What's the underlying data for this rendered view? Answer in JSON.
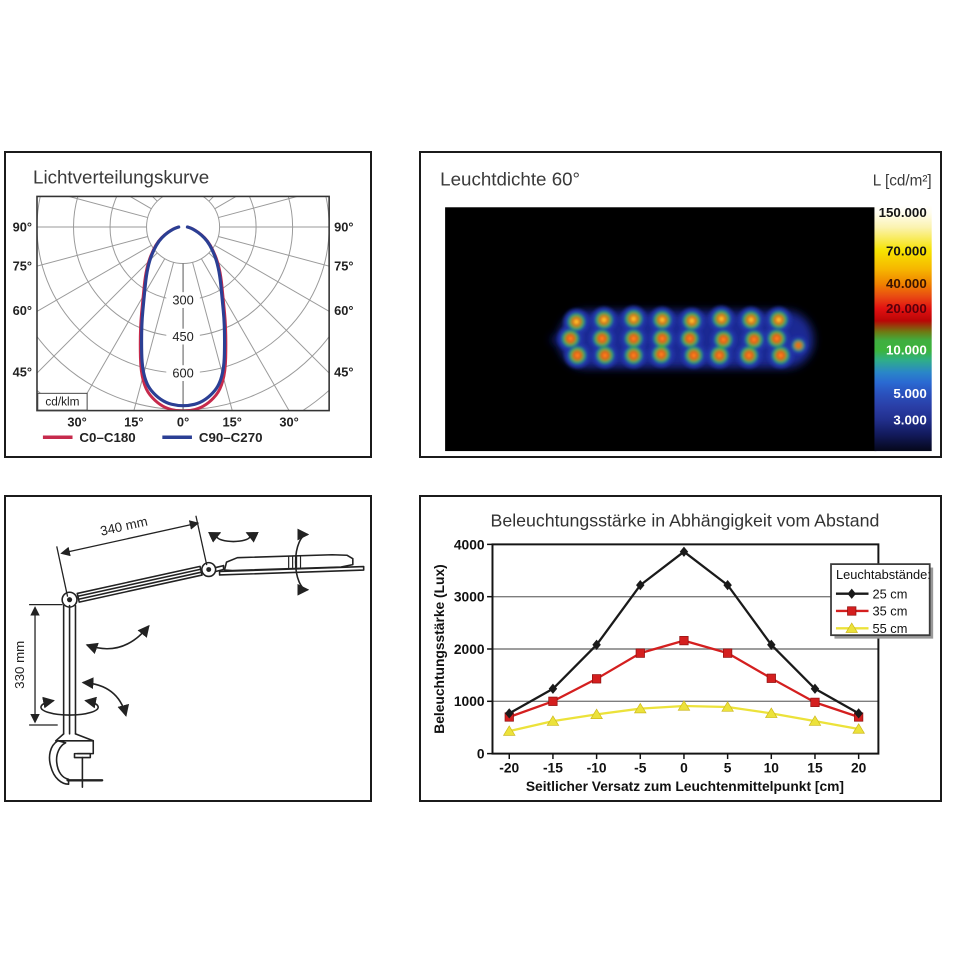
{
  "document": {
    "background": "#ffffff"
  },
  "panels": {
    "light_distribution": {
      "title": "Lichtverteilungskurve",
      "unit_box": "cd/klm",
      "side_angle_labels": [
        {
          "label": "90°",
          "deg": 90
        },
        {
          "label": "75°",
          "deg": 75
        },
        {
          "label": "60°",
          "deg": 60
        },
        {
          "label": "45°",
          "deg": 45
        }
      ],
      "bottom_angle_labels": [
        {
          "label": "30°",
          "deg": -30
        },
        {
          "label": "15°",
          "deg": -15
        },
        {
          "label": "0°",
          "deg": 0
        },
        {
          "label": "15°",
          "deg": 15
        },
        {
          "label": "30°",
          "deg": 30
        }
      ],
      "ring_labels": [
        {
          "label": "300",
          "value": 300
        },
        {
          "label": "450",
          "value": 450
        },
        {
          "label": "600",
          "value": 600
        }
      ],
      "legend": [
        {
          "label": "C0–C180",
          "color": "#c62a4c"
        },
        {
          "label": "C90–C270",
          "color": "#2b3f94"
        }
      ]
    },
    "luminance": {
      "title": "Leuchtdichte 60°",
      "unit_label": "L [cd/m²]"
    },
    "arm_drawing": {
      "arm_length_label": "340 mm",
      "post_height_label": "330 mm"
    },
    "illuminance": {
      "title": "Beleuchtungsstärke in Abhängigkeit vom Abstand",
      "ylabel": "Beleuchtungsstärke (Lux)",
      "xlabel": "Seitlicher Versatz zum Leuchtenmittelpunkt [cm]",
      "legend_title": "Leuchtabstände:"
    }
  },
  "chart_data": [
    {
      "type": "line",
      "subtype": "polar-luminous-intensity",
      "title": "Lichtverteilungskurve",
      "radial_unit": "cd/klm",
      "ring_values": [
        150,
        300,
        450,
        600,
        750,
        900
      ],
      "angle_grid_deg": 15,
      "series": [
        {
          "name": "C0–C180",
          "color": "#c62a4c"
        },
        {
          "name": "C90–C270",
          "color": "#2b3f94"
        }
      ],
      "curve": {
        "symmetric": true,
        "angles_deg": [
          0,
          7.5,
          15,
          22.5,
          30,
          37.5,
          45,
          52.5,
          60,
          67.5,
          75,
          82.5,
          90
        ],
        "values_cd_klm": [
          740,
          722,
          648,
          450,
          318,
          248,
          195,
          150,
          115,
          80,
          50,
          32,
          18
        ]
      }
    },
    {
      "type": "heatmap",
      "subtype": "false-color-luminance",
      "title": "Leuchtdichte 60°",
      "unit": "L [cd/m²]",
      "scale": [
        {
          "label": "150.000",
          "value": 150000
        },
        {
          "label": "70.000",
          "value": 70000
        },
        {
          "label": "40.000",
          "value": 40000
        },
        {
          "label": "20.000",
          "value": 20000
        },
        {
          "label": "10.000",
          "value": 10000
        },
        {
          "label": "5.000",
          "value": 5000
        },
        {
          "label": "3.000",
          "value": 3000
        }
      ],
      "hotspots": [
        {
          "x": 133,
          "y": 116,
          "bright": true
        },
        {
          "x": 127,
          "y": 133
        },
        {
          "x": 134,
          "y": 150
        },
        {
          "x": 161,
          "y": 114,
          "bright": true
        },
        {
          "x": 159,
          "y": 133
        },
        {
          "x": 162,
          "y": 150
        },
        {
          "x": 191,
          "y": 113,
          "bright": true
        },
        {
          "x": 191,
          "y": 133
        },
        {
          "x": 191,
          "y": 150
        },
        {
          "x": 220,
          "y": 114,
          "bright": true
        },
        {
          "x": 220,
          "y": 133
        },
        {
          "x": 219,
          "y": 149
        },
        {
          "x": 250,
          "y": 115,
          "bright": true
        },
        {
          "x": 248,
          "y": 133
        },
        {
          "x": 252,
          "y": 150
        },
        {
          "x": 280,
          "y": 113,
          "bright": true
        },
        {
          "x": 282,
          "y": 134
        },
        {
          "x": 278,
          "y": 150
        },
        {
          "x": 310,
          "y": 114,
          "bright": true
        },
        {
          "x": 313,
          "y": 134
        },
        {
          "x": 308,
          "y": 150
        },
        {
          "x": 338,
          "y": 114,
          "bright": true
        },
        {
          "x": 336,
          "y": 133
        },
        {
          "x": 340,
          "y": 150
        },
        {
          "x": 358,
          "y": 140,
          "small": true
        }
      ]
    },
    {
      "type": "line",
      "title": "Beleuchtungsstärke in Abhängigkeit vom Abstand",
      "xlabel": "Seitlicher Versatz zum Leuchtenmittelpunkt [cm]",
      "ylabel": "Beleuchtungsstärke (Lux)",
      "x": [
        -20,
        -15,
        -10,
        -5,
        0,
        5,
        10,
        15,
        20
      ],
      "xticks": [
        "-20",
        "-15",
        "-10",
        "-5",
        "0",
        "5",
        "10",
        "15",
        "20"
      ],
      "ylim": [
        0,
        4000
      ],
      "yticks": [
        0,
        1000,
        2000,
        3000,
        4000
      ],
      "grid": "horizontal",
      "legend_title": "Leuchtabstände:",
      "legend_position": "upper right",
      "series": [
        {
          "name": "25 cm",
          "marker": "diamond",
          "color": "#1a1a1a",
          "values": [
            770,
            1240,
            2080,
            3220,
            3860,
            3220,
            2080,
            1240,
            770
          ]
        },
        {
          "name": "35 cm",
          "marker": "square",
          "color": "#d41f1f",
          "values": [
            700,
            1000,
            1430,
            1920,
            2160,
            1920,
            1440,
            980,
            700
          ]
        },
        {
          "name": "55 cm",
          "marker": "triangle",
          "color": "#ece23a",
          "values": [
            430,
            620,
            750,
            860,
            910,
            890,
            770,
            620,
            470
          ]
        }
      ]
    }
  ]
}
